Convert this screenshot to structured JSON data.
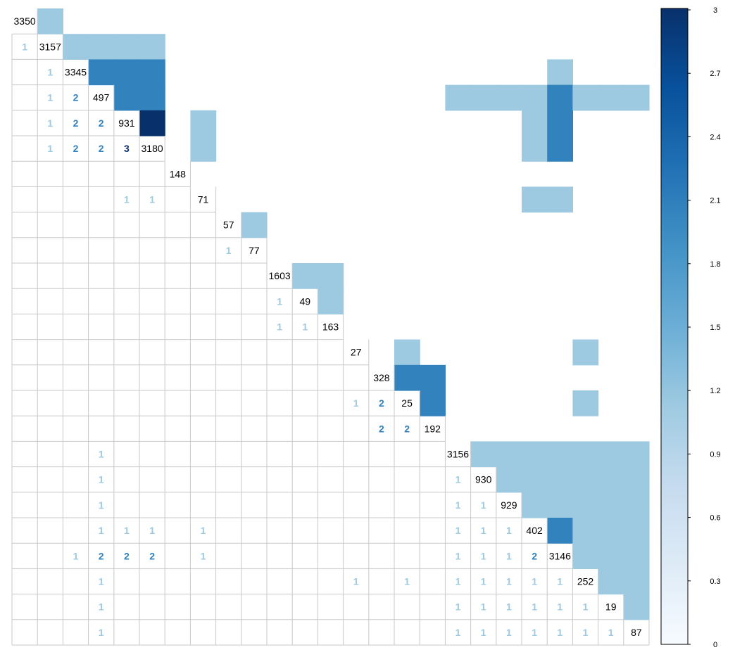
{
  "chart_data": {
    "type": "heatmap",
    "n": 25,
    "color_scale": {
      "min": 0,
      "max": 3,
      "ticks": [
        "0",
        "0.3",
        "0.6",
        "0.9",
        "1.2",
        "1.5",
        "1.8",
        "2.1",
        "2.4",
        "2.7",
        "3"
      ],
      "colors": {
        "1": "#9ecae1",
        "2": "#3182bd",
        "3": "#08306b"
      }
    },
    "diagonal": [
      3350,
      3157,
      3345,
      497,
      931,
      3180,
      148,
      71,
      57,
      77,
      1603,
      49,
      163,
      27,
      328,
      25,
      192,
      3156,
      930,
      929,
      402,
      3146,
      252,
      19,
      87
    ],
    "lower_triangle": [
      {
        "row": 1,
        "col": 0,
        "value": 1
      },
      {
        "row": 2,
        "col": 1,
        "value": 1
      },
      {
        "row": 3,
        "col": 1,
        "value": 1
      },
      {
        "row": 3,
        "col": 2,
        "value": 2
      },
      {
        "row": 4,
        "col": 1,
        "value": 1
      },
      {
        "row": 4,
        "col": 2,
        "value": 2
      },
      {
        "row": 4,
        "col": 3,
        "value": 2
      },
      {
        "row": 5,
        "col": 1,
        "value": 1
      },
      {
        "row": 5,
        "col": 2,
        "value": 2
      },
      {
        "row": 5,
        "col": 3,
        "value": 2
      },
      {
        "row": 5,
        "col": 4,
        "value": 3
      },
      {
        "row": 7,
        "col": 4,
        "value": 1
      },
      {
        "row": 7,
        "col": 5,
        "value": 1
      },
      {
        "row": 9,
        "col": 8,
        "value": 1
      },
      {
        "row": 11,
        "col": 10,
        "value": 1
      },
      {
        "row": 12,
        "col": 10,
        "value": 1
      },
      {
        "row": 12,
        "col": 11,
        "value": 1
      },
      {
        "row": 15,
        "col": 13,
        "value": 1
      },
      {
        "row": 15,
        "col": 14,
        "value": 2
      },
      {
        "row": 16,
        "col": 14,
        "value": 2
      },
      {
        "row": 16,
        "col": 15,
        "value": 2
      },
      {
        "row": 17,
        "col": 3,
        "value": 1
      },
      {
        "row": 18,
        "col": 3,
        "value": 1
      },
      {
        "row": 18,
        "col": 17,
        "value": 1
      },
      {
        "row": 19,
        "col": 3,
        "value": 1
      },
      {
        "row": 19,
        "col": 17,
        "value": 1
      },
      {
        "row": 19,
        "col": 18,
        "value": 1
      },
      {
        "row": 20,
        "col": 3,
        "value": 1
      },
      {
        "row": 20,
        "col": 4,
        "value": 1
      },
      {
        "row": 20,
        "col": 5,
        "value": 1
      },
      {
        "row": 20,
        "col": 7,
        "value": 1
      },
      {
        "row": 20,
        "col": 17,
        "value": 1
      },
      {
        "row": 20,
        "col": 18,
        "value": 1
      },
      {
        "row": 20,
        "col": 19,
        "value": 1
      },
      {
        "row": 21,
        "col": 2,
        "value": 1
      },
      {
        "row": 21,
        "col": 3,
        "value": 2
      },
      {
        "row": 21,
        "col": 4,
        "value": 2
      },
      {
        "row": 21,
        "col": 5,
        "value": 2
      },
      {
        "row": 21,
        "col": 7,
        "value": 1
      },
      {
        "row": 21,
        "col": 17,
        "value": 1
      },
      {
        "row": 21,
        "col": 18,
        "value": 1
      },
      {
        "row": 21,
        "col": 19,
        "value": 1
      },
      {
        "row": 21,
        "col": 20,
        "value": 2
      },
      {
        "row": 22,
        "col": 3,
        "value": 1
      },
      {
        "row": 22,
        "col": 13,
        "value": 1
      },
      {
        "row": 22,
        "col": 15,
        "value": 1
      },
      {
        "row": 22,
        "col": 17,
        "value": 1
      },
      {
        "row": 22,
        "col": 18,
        "value": 1
      },
      {
        "row": 22,
        "col": 19,
        "value": 1
      },
      {
        "row": 22,
        "col": 20,
        "value": 1
      },
      {
        "row": 22,
        "col": 21,
        "value": 1
      },
      {
        "row": 23,
        "col": 3,
        "value": 1
      },
      {
        "row": 23,
        "col": 17,
        "value": 1
      },
      {
        "row": 23,
        "col": 18,
        "value": 1
      },
      {
        "row": 23,
        "col": 19,
        "value": 1
      },
      {
        "row": 23,
        "col": 20,
        "value": 1
      },
      {
        "row": 23,
        "col": 21,
        "value": 1
      },
      {
        "row": 23,
        "col": 22,
        "value": 1
      },
      {
        "row": 24,
        "col": 3,
        "value": 1
      },
      {
        "row": 24,
        "col": 17,
        "value": 1
      },
      {
        "row": 24,
        "col": 18,
        "value": 1
      },
      {
        "row": 24,
        "col": 19,
        "value": 1
      },
      {
        "row": 24,
        "col": 20,
        "value": 1
      },
      {
        "row": 24,
        "col": 21,
        "value": 1
      },
      {
        "row": 24,
        "col": 22,
        "value": 1
      },
      {
        "row": 24,
        "col": 23,
        "value": 1
      }
    ],
    "upper_triangle": [
      {
        "row": 0,
        "col": 1,
        "value": 1
      },
      {
        "row": 1,
        "col": 2,
        "value": 1
      },
      {
        "row": 1,
        "col": 3,
        "value": 1
      },
      {
        "row": 1,
        "col": 4,
        "value": 1
      },
      {
        "row": 1,
        "col": 5,
        "value": 1
      },
      {
        "row": 2,
        "col": 3,
        "value": 2
      },
      {
        "row": 2,
        "col": 4,
        "value": 2
      },
      {
        "row": 2,
        "col": 5,
        "value": 2
      },
      {
        "row": 2,
        "col": 21,
        "value": 1
      },
      {
        "row": 3,
        "col": 4,
        "value": 2
      },
      {
        "row": 3,
        "col": 5,
        "value": 2
      },
      {
        "row": 3,
        "col": 17,
        "value": 1
      },
      {
        "row": 3,
        "col": 18,
        "value": 1
      },
      {
        "row": 3,
        "col": 19,
        "value": 1
      },
      {
        "row": 3,
        "col": 20,
        "value": 1
      },
      {
        "row": 3,
        "col": 21,
        "value": 2
      },
      {
        "row": 3,
        "col": 22,
        "value": 1
      },
      {
        "row": 3,
        "col": 23,
        "value": 1
      },
      {
        "row": 3,
        "col": 24,
        "value": 1
      },
      {
        "row": 4,
        "col": 5,
        "value": 3
      },
      {
        "row": 4,
        "col": 7,
        "value": 1
      },
      {
        "row": 4,
        "col": 20,
        "value": 1
      },
      {
        "row": 4,
        "col": 21,
        "value": 2
      },
      {
        "row": 5,
        "col": 7,
        "value": 1
      },
      {
        "row": 5,
        "col": 20,
        "value": 1
      },
      {
        "row": 5,
        "col": 21,
        "value": 2
      },
      {
        "row": 7,
        "col": 20,
        "value": 1
      },
      {
        "row": 7,
        "col": 21,
        "value": 1
      },
      {
        "row": 8,
        "col": 9,
        "value": 1
      },
      {
        "row": 10,
        "col": 11,
        "value": 1
      },
      {
        "row": 10,
        "col": 12,
        "value": 1
      },
      {
        "row": 11,
        "col": 12,
        "value": 1
      },
      {
        "row": 13,
        "col": 15,
        "value": 1
      },
      {
        "row": 13,
        "col": 22,
        "value": 1
      },
      {
        "row": 14,
        "col": 15,
        "value": 2
      },
      {
        "row": 14,
        "col": 16,
        "value": 2
      },
      {
        "row": 15,
        "col": 16,
        "value": 2
      },
      {
        "row": 15,
        "col": 22,
        "value": 1
      },
      {
        "row": 17,
        "col": 18,
        "value": 1
      },
      {
        "row": 17,
        "col": 19,
        "value": 1
      },
      {
        "row": 17,
        "col": 20,
        "value": 1
      },
      {
        "row": 17,
        "col": 21,
        "value": 1
      },
      {
        "row": 17,
        "col": 22,
        "value": 1
      },
      {
        "row": 17,
        "col": 23,
        "value": 1
      },
      {
        "row": 17,
        "col": 24,
        "value": 1
      },
      {
        "row": 18,
        "col": 19,
        "value": 1
      },
      {
        "row": 18,
        "col": 20,
        "value": 1
      },
      {
        "row": 18,
        "col": 21,
        "value": 1
      },
      {
        "row": 18,
        "col": 22,
        "value": 1
      },
      {
        "row": 18,
        "col": 23,
        "value": 1
      },
      {
        "row": 18,
        "col": 24,
        "value": 1
      },
      {
        "row": 19,
        "col": 20,
        "value": 1
      },
      {
        "row": 19,
        "col": 21,
        "value": 1
      },
      {
        "row": 19,
        "col": 22,
        "value": 1
      },
      {
        "row": 19,
        "col": 23,
        "value": 1
      },
      {
        "row": 19,
        "col": 24,
        "value": 1
      },
      {
        "row": 20,
        "col": 21,
        "value": 2
      },
      {
        "row": 20,
        "col": 22,
        "value": 1
      },
      {
        "row": 20,
        "col": 23,
        "value": 1
      },
      {
        "row": 20,
        "col": 24,
        "value": 1
      },
      {
        "row": 21,
        "col": 22,
        "value": 1
      },
      {
        "row": 21,
        "col": 23,
        "value": 1
      },
      {
        "row": 21,
        "col": 24,
        "value": 1
      },
      {
        "row": 22,
        "col": 23,
        "value": 1
      },
      {
        "row": 22,
        "col": 24,
        "value": 1
      },
      {
        "row": 23,
        "col": 24,
        "value": 1
      }
    ]
  }
}
